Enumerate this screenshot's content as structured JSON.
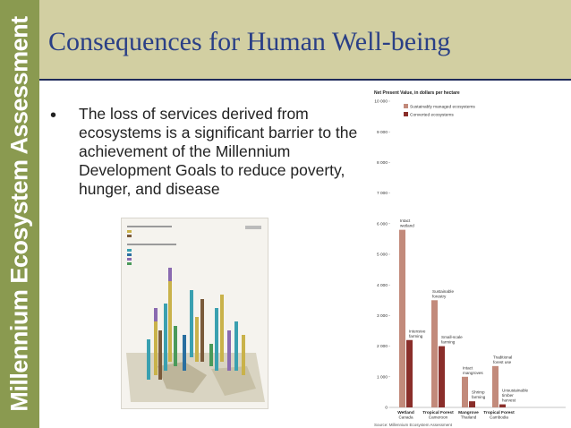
{
  "sidebar": {
    "brand": "Millennium Ecosystem Assessment"
  },
  "slide": {
    "title": "Consequences for Human Well-being",
    "bullet_marker": "•",
    "bullet": "The loss of services derived from ecosystems is a significant barrier to the achievement of the Millennium Development Goals to reduce poverty, hunger, and disease"
  },
  "colors": {
    "sidebar": "#8a9a50",
    "title_band": "#d2cfa2",
    "title_text": "#2a3f86",
    "sustainable": "#c28a7b",
    "converted": "#8a2e2a"
  },
  "chart_data": {
    "type": "bar",
    "title": "Net Present Value, in dollars per hectare",
    "legend": [
      "Sustainably managed ecosystems",
      "Converted ecosystems"
    ],
    "ylim": [
      0,
      10000
    ],
    "yticks": [
      "0",
      "1 000",
      "2 000",
      "3 000",
      "4 000",
      "5 000",
      "6 000",
      "7 000",
      "8 000",
      "9 000",
      "10 000"
    ],
    "groups": [
      {
        "name": "Wetland",
        "place": "Canada",
        "sustainable": 5800,
        "converted": 2200,
        "s_label": "Intact wetland",
        "c_label": "Intensive farming"
      },
      {
        "name": "Tropical Forest",
        "place": "Cameroon",
        "sustainable": 3500,
        "converted": 2000,
        "s_label": "Sustainable forestry",
        "c_label": "Small-scale farming"
      },
      {
        "name": "Mangrove",
        "place": "Thailand",
        "sustainable": 1000,
        "converted": 200,
        "s_label": "Intact mangroves",
        "c_label": "Shrimp farming"
      },
      {
        "name": "Tropical Forest",
        "place": "Cambodia",
        "sustainable": 1350,
        "converted": 100,
        "s_label": "Traditional forest use",
        "c_label": "Unsustainable timber harvest"
      }
    ],
    "source": "Source: Millennium Ecosystem Assessment"
  }
}
